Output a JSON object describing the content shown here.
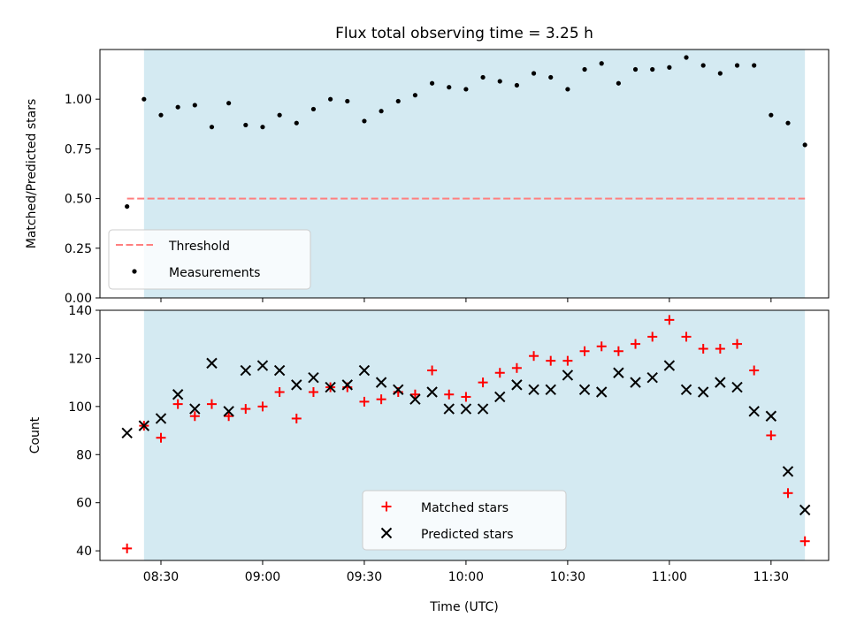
{
  "title": "Flux total observing time = 3.25 h",
  "xlabel": "Time (UTC)",
  "colors": {
    "shade": "#add8e6",
    "threshold": "#ff7f7f",
    "matched": "#ff0000",
    "predicted": "#000000",
    "measurements": "#000000"
  },
  "chart_data": [
    {
      "type": "scatter",
      "ylabel": "Matched/Predicted stars",
      "ylim": [
        0,
        1.25
      ],
      "yticks": [
        "0.00",
        "0.25",
        "0.50",
        "0.75",
        "1.00"
      ],
      "ytick_values": [
        0,
        0.25,
        0.5,
        0.75,
        1.0
      ],
      "shaded_span_x": [
        "08:25",
        "11:40"
      ],
      "threshold": {
        "name": "Threshold",
        "value": 0.5,
        "x": [
          "08:20",
          "11:40"
        ]
      },
      "series": [
        {
          "name": "Measurements",
          "x": [
            "08:20",
            "08:25",
            "08:30",
            "08:35",
            "08:40",
            "08:45",
            "08:50",
            "08:55",
            "09:00",
            "09:05",
            "09:10",
            "09:15",
            "09:20",
            "09:25",
            "09:30",
            "09:35",
            "09:40",
            "09:45",
            "09:50",
            "09:55",
            "10:00",
            "10:05",
            "10:10",
            "10:15",
            "10:20",
            "10:25",
            "10:30",
            "10:35",
            "10:40",
            "10:45",
            "10:50",
            "10:55",
            "11:00",
            "11:05",
            "11:10",
            "11:15",
            "11:20",
            "11:25",
            "11:30",
            "11:35",
            "11:40"
          ],
          "values": [
            0.46,
            1.0,
            0.92,
            0.96,
            0.97,
            0.86,
            0.98,
            0.87,
            0.86,
            0.92,
            0.88,
            0.95,
            1.0,
            0.99,
            0.89,
            0.94,
            0.99,
            1.02,
            1.08,
            1.06,
            1.05,
            1.11,
            1.09,
            1.07,
            1.13,
            1.11,
            1.05,
            1.15,
            1.18,
            1.08,
            1.15,
            1.15,
            1.16,
            1.21,
            1.17,
            1.13,
            1.17,
            1.17,
            0.92,
            0.88,
            0.77
          ]
        }
      ],
      "legend": {
        "placement": "lower-left",
        "entries": [
          "Threshold",
          "Measurements"
        ]
      }
    },
    {
      "type": "scatter",
      "ylabel": "Count",
      "ylim": [
        36,
        140
      ],
      "yticks": [
        "40",
        "60",
        "80",
        "100",
        "120",
        "140"
      ],
      "ytick_values": [
        40,
        60,
        80,
        100,
        120,
        140
      ],
      "shaded_span_x": [
        "08:25",
        "11:40"
      ],
      "xlim": [
        "08:12",
        "11:47"
      ],
      "xticks": [
        "08:30",
        "09:00",
        "09:30",
        "10:00",
        "10:30",
        "11:00",
        "11:30"
      ],
      "series": [
        {
          "name": "Matched stars",
          "marker": "plus",
          "x": [
            "08:20",
            "08:25",
            "08:30",
            "08:35",
            "08:40",
            "08:45",
            "08:50",
            "08:55",
            "09:00",
            "09:05",
            "09:10",
            "09:15",
            "09:20",
            "09:25",
            "09:30",
            "09:35",
            "09:40",
            "09:45",
            "09:50",
            "09:55",
            "10:00",
            "10:05",
            "10:10",
            "10:15",
            "10:20",
            "10:25",
            "10:30",
            "10:35",
            "10:40",
            "10:45",
            "10:50",
            "10:55",
            "11:00",
            "11:05",
            "11:10",
            "11:15",
            "11:20",
            "11:25",
            "11:30",
            "11:35",
            "11:40"
          ],
          "values": [
            41,
            92,
            87,
            101,
            96,
            101,
            96,
            99,
            100,
            106,
            95,
            106,
            108,
            108,
            102,
            103,
            106,
            105,
            115,
            105,
            104,
            110,
            114,
            116,
            121,
            119,
            119,
            123,
            125,
            123,
            126,
            129,
            136,
            129,
            124,
            124,
            126,
            115,
            88,
            64,
            44
          ]
        },
        {
          "name": "Predicted stars",
          "marker": "x",
          "x": [
            "08:20",
            "08:25",
            "08:30",
            "08:35",
            "08:40",
            "08:45",
            "08:50",
            "08:55",
            "09:00",
            "09:05",
            "09:10",
            "09:15",
            "09:20",
            "09:25",
            "09:30",
            "09:35",
            "09:40",
            "09:45",
            "09:50",
            "09:55",
            "10:00",
            "10:05",
            "10:10",
            "10:15",
            "10:20",
            "10:25",
            "10:30",
            "10:35",
            "10:40",
            "10:45",
            "10:50",
            "10:55",
            "11:00",
            "11:05",
            "11:10",
            "11:15",
            "11:20",
            "11:25",
            "11:30",
            "11:35",
            "11:40"
          ],
          "values": [
            89,
            92,
            95,
            105,
            99,
            118,
            98,
            115,
            117,
            115,
            109,
            112,
            108,
            109,
            115,
            110,
            107,
            103,
            106,
            99,
            99,
            99,
            104,
            109,
            107,
            107,
            113,
            107,
            106,
            114,
            110,
            112,
            117,
            107,
            106,
            110,
            108,
            98,
            96,
            73,
            57
          ]
        }
      ],
      "legend": {
        "placement": "lower-center",
        "entries": [
          "Matched stars",
          "Predicted stars"
        ]
      }
    }
  ]
}
